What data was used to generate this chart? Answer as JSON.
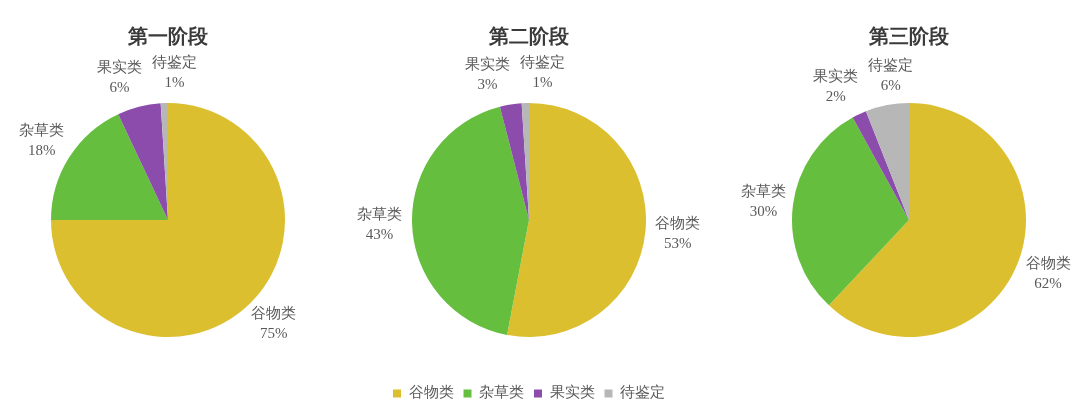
{
  "chart_data": [
    {
      "type": "pie",
      "title": "第一阶段",
      "categories": [
        "谷物类",
        "杂草类",
        "果实类",
        "待鉴定"
      ],
      "values": [
        75,
        18,
        6,
        1
      ],
      "colors": [
        "#dcbf2f",
        "#66be3e",
        "#8b4cab",
        "#b7b7b7"
      ],
      "value_labels": [
        "75%",
        "18%",
        "6%",
        "1%"
      ]
    },
    {
      "type": "pie",
      "title": "第二阶段",
      "categories": [
        "谷物类",
        "杂草类",
        "果实类",
        "待鉴定"
      ],
      "values": [
        53,
        43,
        3,
        1
      ],
      "colors": [
        "#dcbf2f",
        "#66be3e",
        "#8b4cab",
        "#b7b7b7"
      ],
      "value_labels": [
        "53%",
        "43%",
        "3%",
        "1%"
      ],
      "legend": "bottom"
    },
    {
      "type": "pie",
      "title": "第三阶段",
      "categories": [
        "谷物类",
        "杂草类",
        "果实类",
        "待鉴定"
      ],
      "values": [
        62,
        30,
        2,
        6
      ],
      "colors": [
        "#dcbf2f",
        "#66be3e",
        "#8b4cab",
        "#b7b7b7"
      ],
      "value_labels": [
        "62%",
        "30%",
        "2%",
        "6%"
      ]
    }
  ]
}
